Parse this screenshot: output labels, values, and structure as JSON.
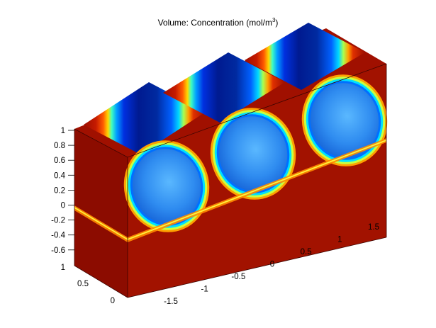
{
  "chart_data": {
    "type": "volume-slice",
    "title_prefix": "Volume: Concentration (mol/m",
    "title_superscript": "3",
    "title_suffix": ")",
    "z_ticks": [
      "1",
      "0.8",
      "0.6",
      "0.4",
      "0.2",
      "0",
      "-0.2",
      "-0.4",
      "-0.6"
    ],
    "y_ticks": [
      "1",
      "0.5",
      "0"
    ],
    "x_ticks": [
      "-1.5",
      "-1",
      "-0.5",
      "0",
      "0.5",
      "1",
      "1.5"
    ],
    "colormap": "jet",
    "colors": {
      "high": "#a01000",
      "mid": "#ffd000",
      "low": "#0050ff",
      "background": "#ffffff"
    },
    "pipes": 3
  }
}
